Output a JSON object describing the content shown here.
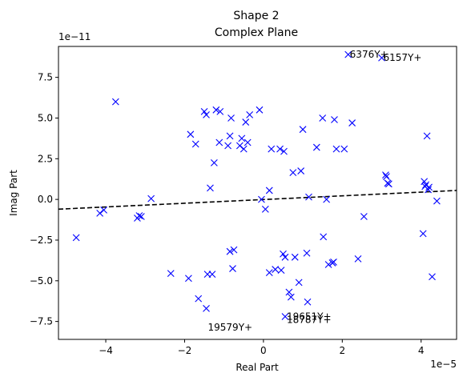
{
  "chart_data": {
    "type": "scatter",
    "title": "Shape 2",
    "subtitle": "Complex Plane",
    "xlabel": "Real Part",
    "ylabel": "Imag Part",
    "x_offset_label": "1e−5",
    "y_offset_label": "1e−11",
    "xlim": [
      -5.2,
      4.9
    ],
    "ylim": [
      -8.6,
      9.4
    ],
    "x_ticks": [
      -4,
      -2,
      0,
      2,
      4
    ],
    "x_tick_labels": [
      "−4",
      "−2",
      "0",
      "2",
      "4"
    ],
    "y_ticks": [
      -7.5,
      -5.0,
      -2.5,
      0.0,
      2.5,
      5.0,
      7.5
    ],
    "y_tick_labels": [
      "−7.5",
      "−5.0",
      "−2.5",
      "0.0",
      "2.5",
      "5.0",
      "7.5"
    ],
    "grid": false,
    "marker": "x",
    "marker_color": "#0000ff",
    "trend_line": {
      "style": "dashed",
      "color": "#000000",
      "points": [
        [
          -5.2,
          -0.6
        ],
        [
          4.9,
          0.55
        ]
      ]
    },
    "points": [
      [
        -4.75,
        -2.35
      ],
      [
        -4.15,
        -0.85
      ],
      [
        -4.05,
        -0.65
      ],
      [
        -3.75,
        6.0
      ],
      [
        -3.2,
        -1.15
      ],
      [
        -3.15,
        -1.0
      ],
      [
        -3.1,
        -1.05
      ],
      [
        -2.85,
        0.05
      ],
      [
        -2.35,
        -4.55
      ],
      [
        -1.9,
        -4.85
      ],
      [
        -1.85,
        4.0
      ],
      [
        -1.72,
        3.4
      ],
      [
        -1.65,
        -6.1
      ],
      [
        -1.5,
        5.4
      ],
      [
        -1.45,
        5.2
      ],
      [
        -1.45,
        -6.7
      ],
      [
        -1.42,
        -4.6
      ],
      [
        -1.35,
        0.7
      ],
      [
        -1.3,
        -4.6
      ],
      [
        -1.25,
        2.25
      ],
      [
        -1.2,
        5.5
      ],
      [
        -1.12,
        3.5
      ],
      [
        -1.1,
        5.4
      ],
      [
        -0.9,
        3.3
      ],
      [
        -0.85,
        3.9
      ],
      [
        -0.85,
        -3.2
      ],
      [
        -0.82,
        5.0
      ],
      [
        -0.78,
        -4.25
      ],
      [
        -0.75,
        -3.1
      ],
      [
        -0.6,
        3.3
      ],
      [
        -0.55,
        3.75
      ],
      [
        -0.5,
        3.1
      ],
      [
        -0.45,
        4.75
      ],
      [
        -0.4,
        3.5
      ],
      [
        -0.35,
        5.2
      ],
      [
        -0.1,
        5.5
      ],
      [
        -0.05,
        0.0
      ],
      [
        0.05,
        -0.6
      ],
      [
        0.15,
        0.55
      ],
      [
        0.15,
        -4.5
      ],
      [
        0.2,
        3.1
      ],
      [
        0.3,
        -4.3
      ],
      [
        0.42,
        3.1
      ],
      [
        0.45,
        -4.35
      ],
      [
        0.5,
        -3.35
      ],
      [
        0.52,
        2.95
      ],
      [
        0.55,
        -3.55
      ],
      [
        0.55,
        -7.2
      ],
      [
        0.65,
        -5.7
      ],
      [
        0.7,
        -6.0
      ],
      [
        0.75,
        1.65
      ],
      [
        0.8,
        -3.55
      ],
      [
        0.9,
        -5.1
      ],
      [
        0.95,
        1.75
      ],
      [
        1.0,
        4.3
      ],
      [
        1.1,
        -3.3
      ],
      [
        1.12,
        -6.3
      ],
      [
        1.15,
        0.15
      ],
      [
        1.35,
        3.2
      ],
      [
        1.5,
        5.0
      ],
      [
        1.52,
        -2.3
      ],
      [
        1.6,
        0.0
      ],
      [
        1.65,
        -4.0
      ],
      [
        1.75,
        -3.9
      ],
      [
        1.78,
        -3.85
      ],
      [
        1.8,
        4.9
      ],
      [
        1.85,
        3.1
      ],
      [
        2.05,
        3.1
      ],
      [
        2.15,
        8.9
      ],
      [
        2.25,
        4.7
      ],
      [
        2.4,
        -3.65
      ],
      [
        2.55,
        -1.05
      ],
      [
        3.0,
        8.7
      ],
      [
        3.1,
        1.5
      ],
      [
        3.12,
        1.4
      ],
      [
        3.15,
        1.0
      ],
      [
        3.18,
        0.95
      ],
      [
        4.05,
        -2.1
      ],
      [
        4.08,
        1.1
      ],
      [
        4.1,
        0.8
      ],
      [
        4.12,
        0.9
      ],
      [
        4.15,
        3.9
      ],
      [
        4.18,
        0.6
      ],
      [
        4.2,
        0.75
      ],
      [
        4.28,
        -4.75
      ],
      [
        4.4,
        -0.1
      ]
    ],
    "annotations": [
      {
        "text": "6376Y+",
        "x": 2.15,
        "y": 8.9
      },
      {
        "text": "6157Y+",
        "x": 3.0,
        "y": 8.7
      },
      {
        "text": "19651Y+",
        "x": 0.55,
        "y": -7.2
      },
      {
        "text": "18787Y+",
        "x": 0.55,
        "y": -7.4
      },
      {
        "text": "19579Y+",
        "x": -1.45,
        "y": -7.85
      }
    ]
  }
}
